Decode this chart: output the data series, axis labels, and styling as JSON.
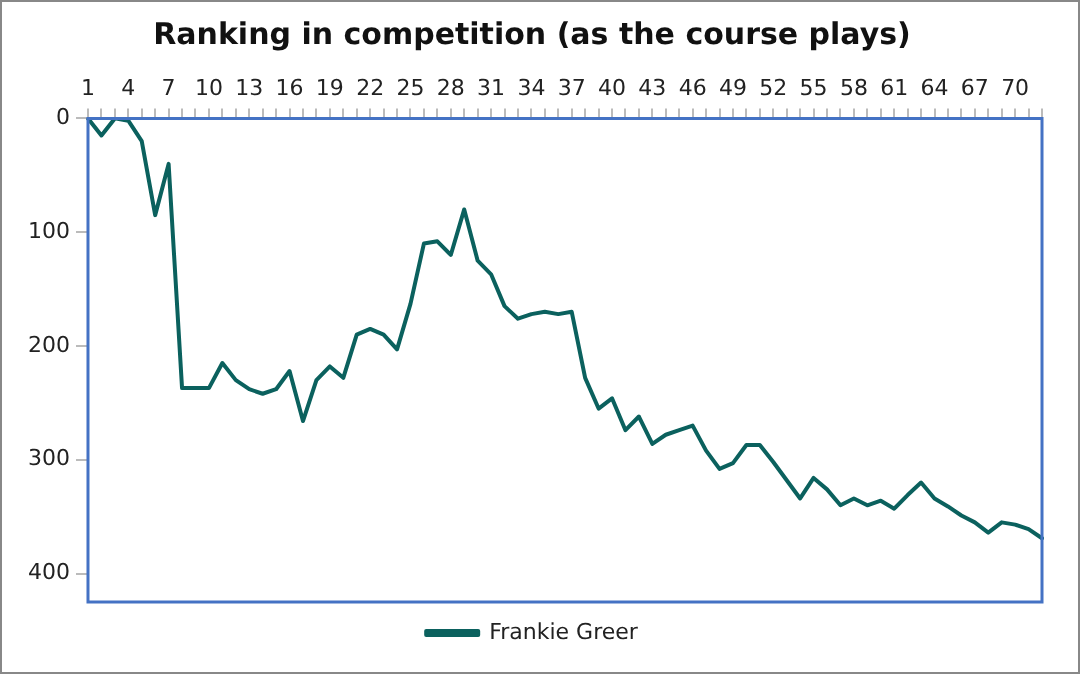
{
  "chart_data": {
    "type": "line",
    "title": "Ranking in competition (as the course plays)",
    "categories": [
      "1",
      null,
      null,
      "4",
      null,
      null,
      "7",
      null,
      null,
      "10",
      null,
      null,
      "13",
      null,
      null,
      "16",
      null,
      null,
      "19",
      null,
      null,
      "22",
      null,
      null,
      "25",
      null,
      null,
      "28",
      null,
      null,
      "31",
      null,
      null,
      "34",
      null,
      null,
      "37",
      null,
      null,
      "40",
      null,
      null,
      "43",
      null,
      null,
      "46",
      null,
      null,
      "49",
      null,
      null,
      "52",
      null,
      null,
      "55",
      null,
      null,
      "58",
      null,
      null,
      "61",
      null,
      null,
      "64",
      null,
      null,
      "67",
      null,
      null,
      "70",
      null,
      null
    ],
    "series": [
      {
        "name": "Frankie Greer",
        "color": "#0b615e",
        "values": [
          0,
          15,
          0,
          2,
          20,
          85,
          40,
          237,
          237,
          237,
          215,
          230,
          238,
          242,
          238,
          222,
          266,
          230,
          218,
          228,
          190,
          185,
          190,
          203,
          163,
          110,
          108,
          120,
          80,
          125,
          137,
          165,
          176,
          172,
          170,
          172,
          170,
          228,
          255,
          246,
          274,
          262,
          286,
          278,
          274,
          270,
          292,
          308,
          303,
          287,
          287,
          302,
          318,
          334,
          316,
          326,
          340,
          334,
          340,
          336,
          343,
          331,
          320,
          334,
          341,
          349,
          355,
          364,
          355,
          357,
          361,
          369
        ]
      }
    ],
    "ylim": [
      425,
      0
    ],
    "yticks": [
      0,
      100,
      200,
      300,
      400
    ],
    "grid": false,
    "legend": "bottom",
    "marker": "none",
    "line_style": "solid"
  }
}
